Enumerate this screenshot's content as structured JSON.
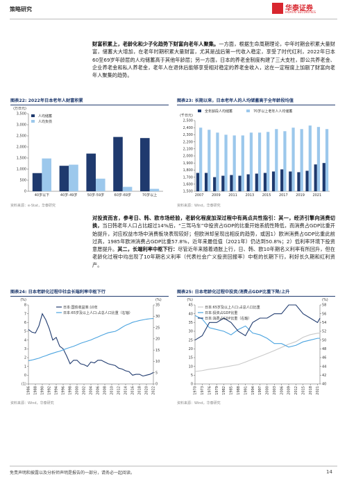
{
  "header": {
    "section": "策略研究",
    "logo_cn": "华泰证券",
    "logo_en": "HUATAI SECURITIES"
  },
  "paragraphs": [
    [
      {
        "text": "财富积累上，老龄化和少子化趋势下财富向老年人聚集。",
        "bold": true
      },
      {
        "text": "一方面，根据生命周期理论，中年时期会积累大量财富，储蓄大大增加，在老年时期积累大量财富，尤其是战后第一代收入稳定，享受了时代红利，2022年日本60至69岁年龄层的人均储蓄高于其他年龄层；另一方面，日本的养老金制度构建了三大支柱，即公共养老金、企业养老金和私人养老金，老年人在退休后能够享受相对稳定的养老金收入，这在一定程度上加剧了财富向老年人聚集的趋势。",
        "bold": false
      }
    ],
    [
      {
        "text": "对投资而言，参考日、韩、欧市场经验，老龄化程度加深过程中有两点共性指引：其一，经济引擎向消费切换，",
        "bold": true
      },
      {
        "text": "当日韩老年人口占比超过14%后，“三驾马车”中投资占GDP的比重开始系统性降低，而消费占GDP比重开始提升，对应权益市场中消费板块表现较好；但欧洲却呈现出相反的趋势，或因1）欧洲消费占GDP比重此前过高，1985年欧洲消费占GDP比重57.8%，近年来最低值（2021年）仍达到50.8%；2）低利率环境下投资意愿提升。",
        "bold": false
      },
      {
        "text": "其二，长端利率中枢下行：",
        "bold": true
      },
      {
        "text": "尽管近年来随着通胀上行，日、韩、欧10年期名义利率有所回升，但在老龄化过程中均出现了10年期名义利率（代表社会广义投资回报率）中枢的长期下行，利好长久期和红利资产。",
        "bold": false
      }
    ]
  ],
  "chart_data": [
    {
      "type": "bar",
      "title": "图表22: 2022年日本老年人财富积累",
      "y_label": "(万日元)",
      "legend": "upper left",
      "categories": [
        "40岁以下",
        "40岁-49岁",
        "50岁-59岁",
        "60岁-69岁",
        "70岁以上"
      ],
      "series": [
        {
          "name": "人均储蓄",
          "color": "#1f3a6e",
          "values": [
            820,
            1150,
            1700,
            2450,
            2400
          ]
        },
        {
          "name": "人均负债",
          "color": "#9cc8ec",
          "values": [
            1480,
            1200,
            570,
            200,
            110
          ]
        }
      ],
      "ylim": [
        0,
        3500
      ],
      "yticks": [
        0,
        500,
        {
          "value": 1000,
          "label": "1,000"
        },
        {
          "value": 1500,
          "label": "1,500"
        },
        {
          "value": 2000,
          "label": "2,000"
        },
        {
          "value": 2500,
          "label": "2,500"
        },
        {
          "value": 3000,
          "label": "3,000"
        },
        {
          "value": 3500,
          "label": "3,500"
        }
      ],
      "source": "资料来源：e-Stat，华泰研究"
    },
    {
      "type": "bar",
      "title": "图表23: 长期以来，日本老年人的人均储蓄高于全年龄段均值",
      "y_label": "(千日元)",
      "legend": "top",
      "categories": [
        "2007",
        null,
        "2009",
        null,
        "2011",
        null,
        "2013",
        null,
        "2015",
        null,
        "2017",
        null,
        "2019",
        null,
        "2021",
        null
      ],
      "series": [
        {
          "name": "全年龄段人均储蓄",
          "color": "#1f3a6e",
          "values": [
            1760,
            1760,
            1700,
            1720,
            1730,
            1720,
            1740,
            1750,
            1760,
            1780,
            1810,
            1780,
            1770,
            1790,
            1880,
            1900
          ]
        },
        {
          "name": "70岁以上老年人人均储蓄",
          "color": "#9cc8ec",
          "values": [
            2400,
            2370,
            2330,
            2300,
            2290,
            2290,
            2330,
            2330,
            2340,
            2380,
            2350,
            2400,
            2380,
            2430,
            2410,
            2380
          ]
        }
      ],
      "ylim": [
        1500,
        2500
      ],
      "yticks": [
        {
          "value": 1500,
          "label": "1,500"
        },
        {
          "value": 1600,
          "label": "1,600"
        },
        {
          "value": 1700,
          "label": "1,700"
        },
        {
          "value": 1800,
          "label": "1,800"
        },
        {
          "value": 1900,
          "label": "1,900"
        },
        {
          "value": 2000,
          "label": "2,000"
        },
        {
          "value": 2100,
          "label": "2,100"
        },
        {
          "value": 2200,
          "label": "2,200"
        },
        {
          "value": 2300,
          "label": "2,300"
        },
        {
          "value": 2400,
          "label": "2,400"
        },
        {
          "value": 2500,
          "label": "2,500"
        }
      ],
      "source": "资料来源：Wind，华泰研究"
    },
    {
      "type": "line",
      "title": "图表24: 日本老龄化过程中社会长端利率中枢下行",
      "y_label": "(%)",
      "y2_label": "(%)",
      "legend": "upper right",
      "x": [
        1986,
        1987,
        1988,
        1989,
        1990,
        1991,
        1992,
        1993,
        1994,
        1995,
        1996,
        1997,
        1998,
        1999,
        2000,
        2001,
        2002,
        2003,
        2004,
        2005,
        2006,
        2007,
        2008,
        2009,
        2010,
        2011,
        2012,
        2013,
        2014,
        2015,
        2016,
        2017,
        2018,
        2019,
        2020,
        2021,
        2022
      ],
      "series": [
        {
          "name": "日本:国债收益率:10年",
          "color": "#1f3a6e",
          "values": [
            5.2,
            4.9,
            4.8,
            5.6,
            7.0,
            6.3,
            5.3,
            4.0,
            4.3,
            3.3,
            3.0,
            2.2,
            1.3,
            1.7,
            1.7,
            1.3,
            1.2,
            1.0,
            1.5,
            1.4,
            1.7,
            1.7,
            1.5,
            1.3,
            1.2,
            1.1,
            0.8,
            0.7,
            0.5,
            0.4,
            0.0,
            0.1,
            0.1,
            -0.1,
            0.0,
            0.1,
            0.3
          ]
        },
        {
          "name": "日本:65岁及以上人口:占总人口比重（右轴）",
          "color": "#4aa3df",
          "axis": "y2",
          "values": [
            10.3,
            10.6,
            11.0,
            11.4,
            12.0,
            12.5,
            13.1,
            13.6,
            14.1,
            14.5,
            15.1,
            15.7,
            16.2,
            16.7,
            17.3,
            18.0,
            18.5,
            19.0,
            19.5,
            20.2,
            20.8,
            21.5,
            22.1,
            22.7,
            23.0,
            23.3,
            24.1,
            25.1,
            26.0,
            26.6,
            27.3,
            27.7,
            28.1,
            28.4,
            28.7,
            28.9,
            29.0
          ]
        }
      ],
      "xlim": [
        1986,
        2022
      ],
      "xticks": [
        1986,
        1988,
        1990,
        1992,
        1994,
        1996,
        1998,
        2000,
        2002,
        2004,
        2006,
        2008,
        2010,
        2012,
        2014,
        2016,
        2018,
        2020,
        2022
      ],
      "ylim": [
        -1,
        8
      ],
      "yticks": [
        {
          "value": -1,
          "label": "(1)"
        },
        0,
        1,
        2,
        3,
        4,
        5,
        6,
        7,
        8
      ],
      "y2lim": [
        0,
        35
      ],
      "y2ticks": [
        0,
        5,
        10,
        15,
        20,
        25,
        30,
        35
      ],
      "source": "资料来源：Wind，华泰研究"
    },
    {
      "type": "line",
      "title": "图表25: 日本老龄化过程中投资/消费占GDP比重下降/上升",
      "y_label": "(%)",
      "y2_label": "(%)",
      "legend": "upper left",
      "x": [
        1970,
        1973,
        1976,
        1979,
        1982,
        1985,
        1988,
        1991,
        1994,
        1997,
        2000,
        2003,
        2006,
        2009,
        2012,
        2015,
        2018,
        2021,
        2022
      ],
      "series": [
        {
          "name": "日本:65岁及以上人口:占总人口比重",
          "color": "#c8c8c8",
          "values": [
            7.1,
            7.6,
            8.4,
            8.9,
            9.6,
            10.3,
            11.0,
            12.5,
            14.1,
            15.7,
            17.3,
            19.0,
            20.8,
            22.7,
            24.1,
            26.6,
            28.1,
            28.9,
            29.0
          ]
        },
        {
          "name": "日本:投资占GDP比重",
          "color": "#4aa3df",
          "values": [
            39,
            37,
            32,
            31,
            30,
            28,
            31,
            33,
            29,
            28,
            26,
            23,
            23,
            21,
            22,
            24,
            25,
            26,
            26
          ]
        },
        {
          "name": "日本:消费占GDP比重（右轴）",
          "color": "#1f3a6e",
          "axis": "y2",
          "values": [
            50,
            51,
            54,
            54,
            55,
            54,
            52,
            51,
            54,
            55,
            55,
            56,
            56,
            58,
            58,
            56,
            55,
            54,
            55
          ]
        }
      ],
      "xlim": [
        1970,
        2022
      ],
      "xticks": [
        1970,
        1973,
        1976,
        1979,
        1982,
        1985,
        1988,
        1991,
        1994,
        1997,
        2000,
        2003,
        2006,
        2009,
        2012,
        2015,
        2018,
        2021
      ],
      "ylim": [
        0,
        45
      ],
      "yticks": [
        0,
        5,
        10,
        15,
        20,
        25,
        30,
        35,
        40,
        45
      ],
      "y2lim": [
        40,
        58
      ],
      "y2ticks": [
        40,
        42,
        44,
        46,
        48,
        50,
        52,
        54,
        56,
        58
      ],
      "source": "资料来源：Wind，华泰研究"
    }
  ],
  "footer": {
    "disclaimer": "免责声明和披露以及分析师声明是报告的一部分，请务必一起阅读。",
    "page": "14"
  }
}
